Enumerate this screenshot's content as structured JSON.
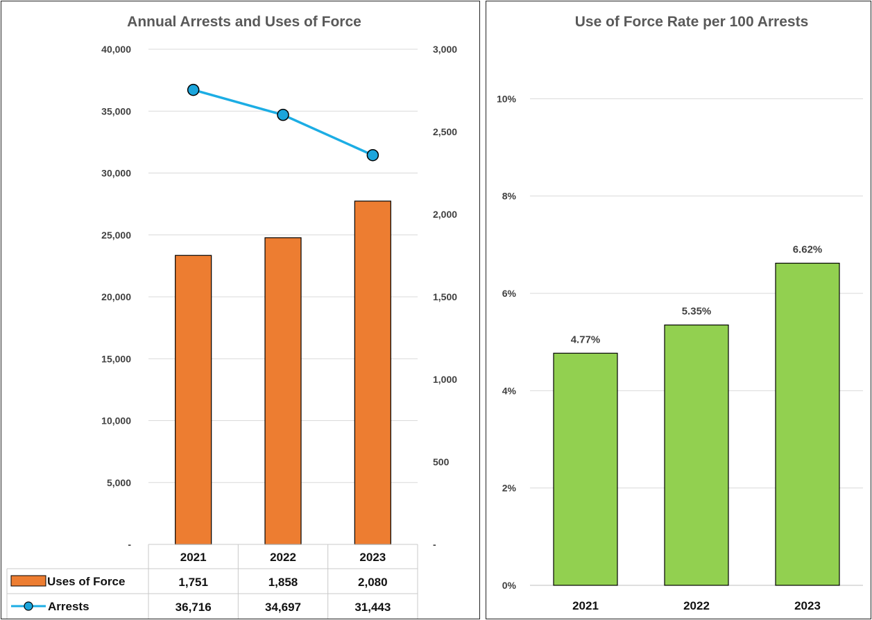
{
  "colors": {
    "bar_left": "#ED7D31",
    "line": "#1CADE4",
    "marker": "#1BA5DC",
    "bar_right": "#92D050",
    "grid": "#D9D9D9",
    "axis_text": "#404040",
    "title_text": "#595959"
  },
  "chart_data": [
    {
      "type": "bar+line",
      "title": "Annual Arrests and Uses of Force",
      "categories": [
        "2021",
        "2022",
        "2023"
      ],
      "series": [
        {
          "name": "Uses of Force",
          "kind": "bar",
          "axis": "right",
          "values": [
            1751,
            1858,
            2080
          ],
          "display": [
            "1,751",
            "1,858",
            "2,080"
          ]
        },
        {
          "name": "Arrests",
          "kind": "line",
          "axis": "left",
          "values": [
            36716,
            34697,
            31443
          ],
          "display": [
            "36,716",
            "34,697",
            "31,443"
          ]
        }
      ],
      "y_left": {
        "min": 0,
        "max": 40000,
        "ticks": [
          "-",
          "5,000",
          "10,000",
          "15,000",
          "20,000",
          "25,000",
          "30,000",
          "35,000",
          "40,000"
        ]
      },
      "y_right": {
        "min": 0,
        "max": 3000,
        "ticks": [
          "-",
          "500",
          "1,000",
          "1,500",
          "2,000",
          "2,500",
          "3,000"
        ]
      },
      "grid": true,
      "legend": "data table below plot"
    },
    {
      "type": "bar",
      "title": "Use of Force Rate per 100 Arrests",
      "categories": [
        "2021",
        "2022",
        "2023"
      ],
      "values": [
        4.77,
        5.35,
        6.62
      ],
      "data_labels": [
        "4.77%",
        "5.35%",
        "6.62%"
      ],
      "ylim": [
        0,
        12
      ],
      "y_ticks": [
        "0%",
        "2%",
        "4%",
        "6%",
        "8%",
        "10%"
      ],
      "grid": true
    }
  ]
}
